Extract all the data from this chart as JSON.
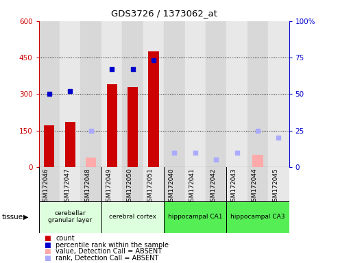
{
  "title": "GDS3726 / 1373062_at",
  "samples": [
    "GSM172046",
    "GSM172047",
    "GSM172048",
    "GSM172049",
    "GSM172050",
    "GSM172051",
    "GSM172040",
    "GSM172041",
    "GSM172042",
    "GSM172043",
    "GSM172044",
    "GSM172045"
  ],
  "left_ylim": [
    0,
    600
  ],
  "right_ylim": [
    0,
    100
  ],
  "left_yticks": [
    0,
    150,
    300,
    450,
    600
  ],
  "right_yticks": [
    0,
    25,
    50,
    75,
    100
  ],
  "left_yticklabels": [
    "0",
    "150",
    "300",
    "450",
    "600"
  ],
  "right_yticklabels": [
    "0",
    "25",
    "50",
    "75",
    "100%"
  ],
  "count_present": [
    170,
    185,
    0,
    340,
    330,
    475,
    0,
    0,
    0,
    0,
    0,
    0
  ],
  "count_absent": [
    0,
    0,
    40,
    0,
    0,
    0,
    0,
    0,
    0,
    0,
    50,
    0
  ],
  "rank_present_pct": [
    50,
    52,
    0,
    67,
    67,
    73,
    0,
    0,
    0,
    0,
    0,
    0
  ],
  "rank_absent_pct": [
    0,
    0,
    25,
    0,
    0,
    0,
    10,
    10,
    5,
    10,
    25,
    20
  ],
  "tissue_groups": [
    {
      "label": "cerebellar\ngranular layer",
      "start": 0,
      "end": 3,
      "color": "#ddffdd"
    },
    {
      "label": "cerebral cortex",
      "start": 3,
      "end": 6,
      "color": "#ddffdd"
    },
    {
      "label": "hippocampal CA1",
      "start": 6,
      "end": 9,
      "color": "#55ee55"
    },
    {
      "label": "hippocampal CA3",
      "start": 9,
      "end": 12,
      "color": "#55ee55"
    }
  ],
  "color_count_present": "#cc0000",
  "color_count_absent": "#ffaaaa",
  "color_rank_present": "#0000cc",
  "color_rank_absent": "#aaaaff",
  "col_bg_even": "#d8d8d8",
  "col_bg_odd": "#e8e8e8"
}
